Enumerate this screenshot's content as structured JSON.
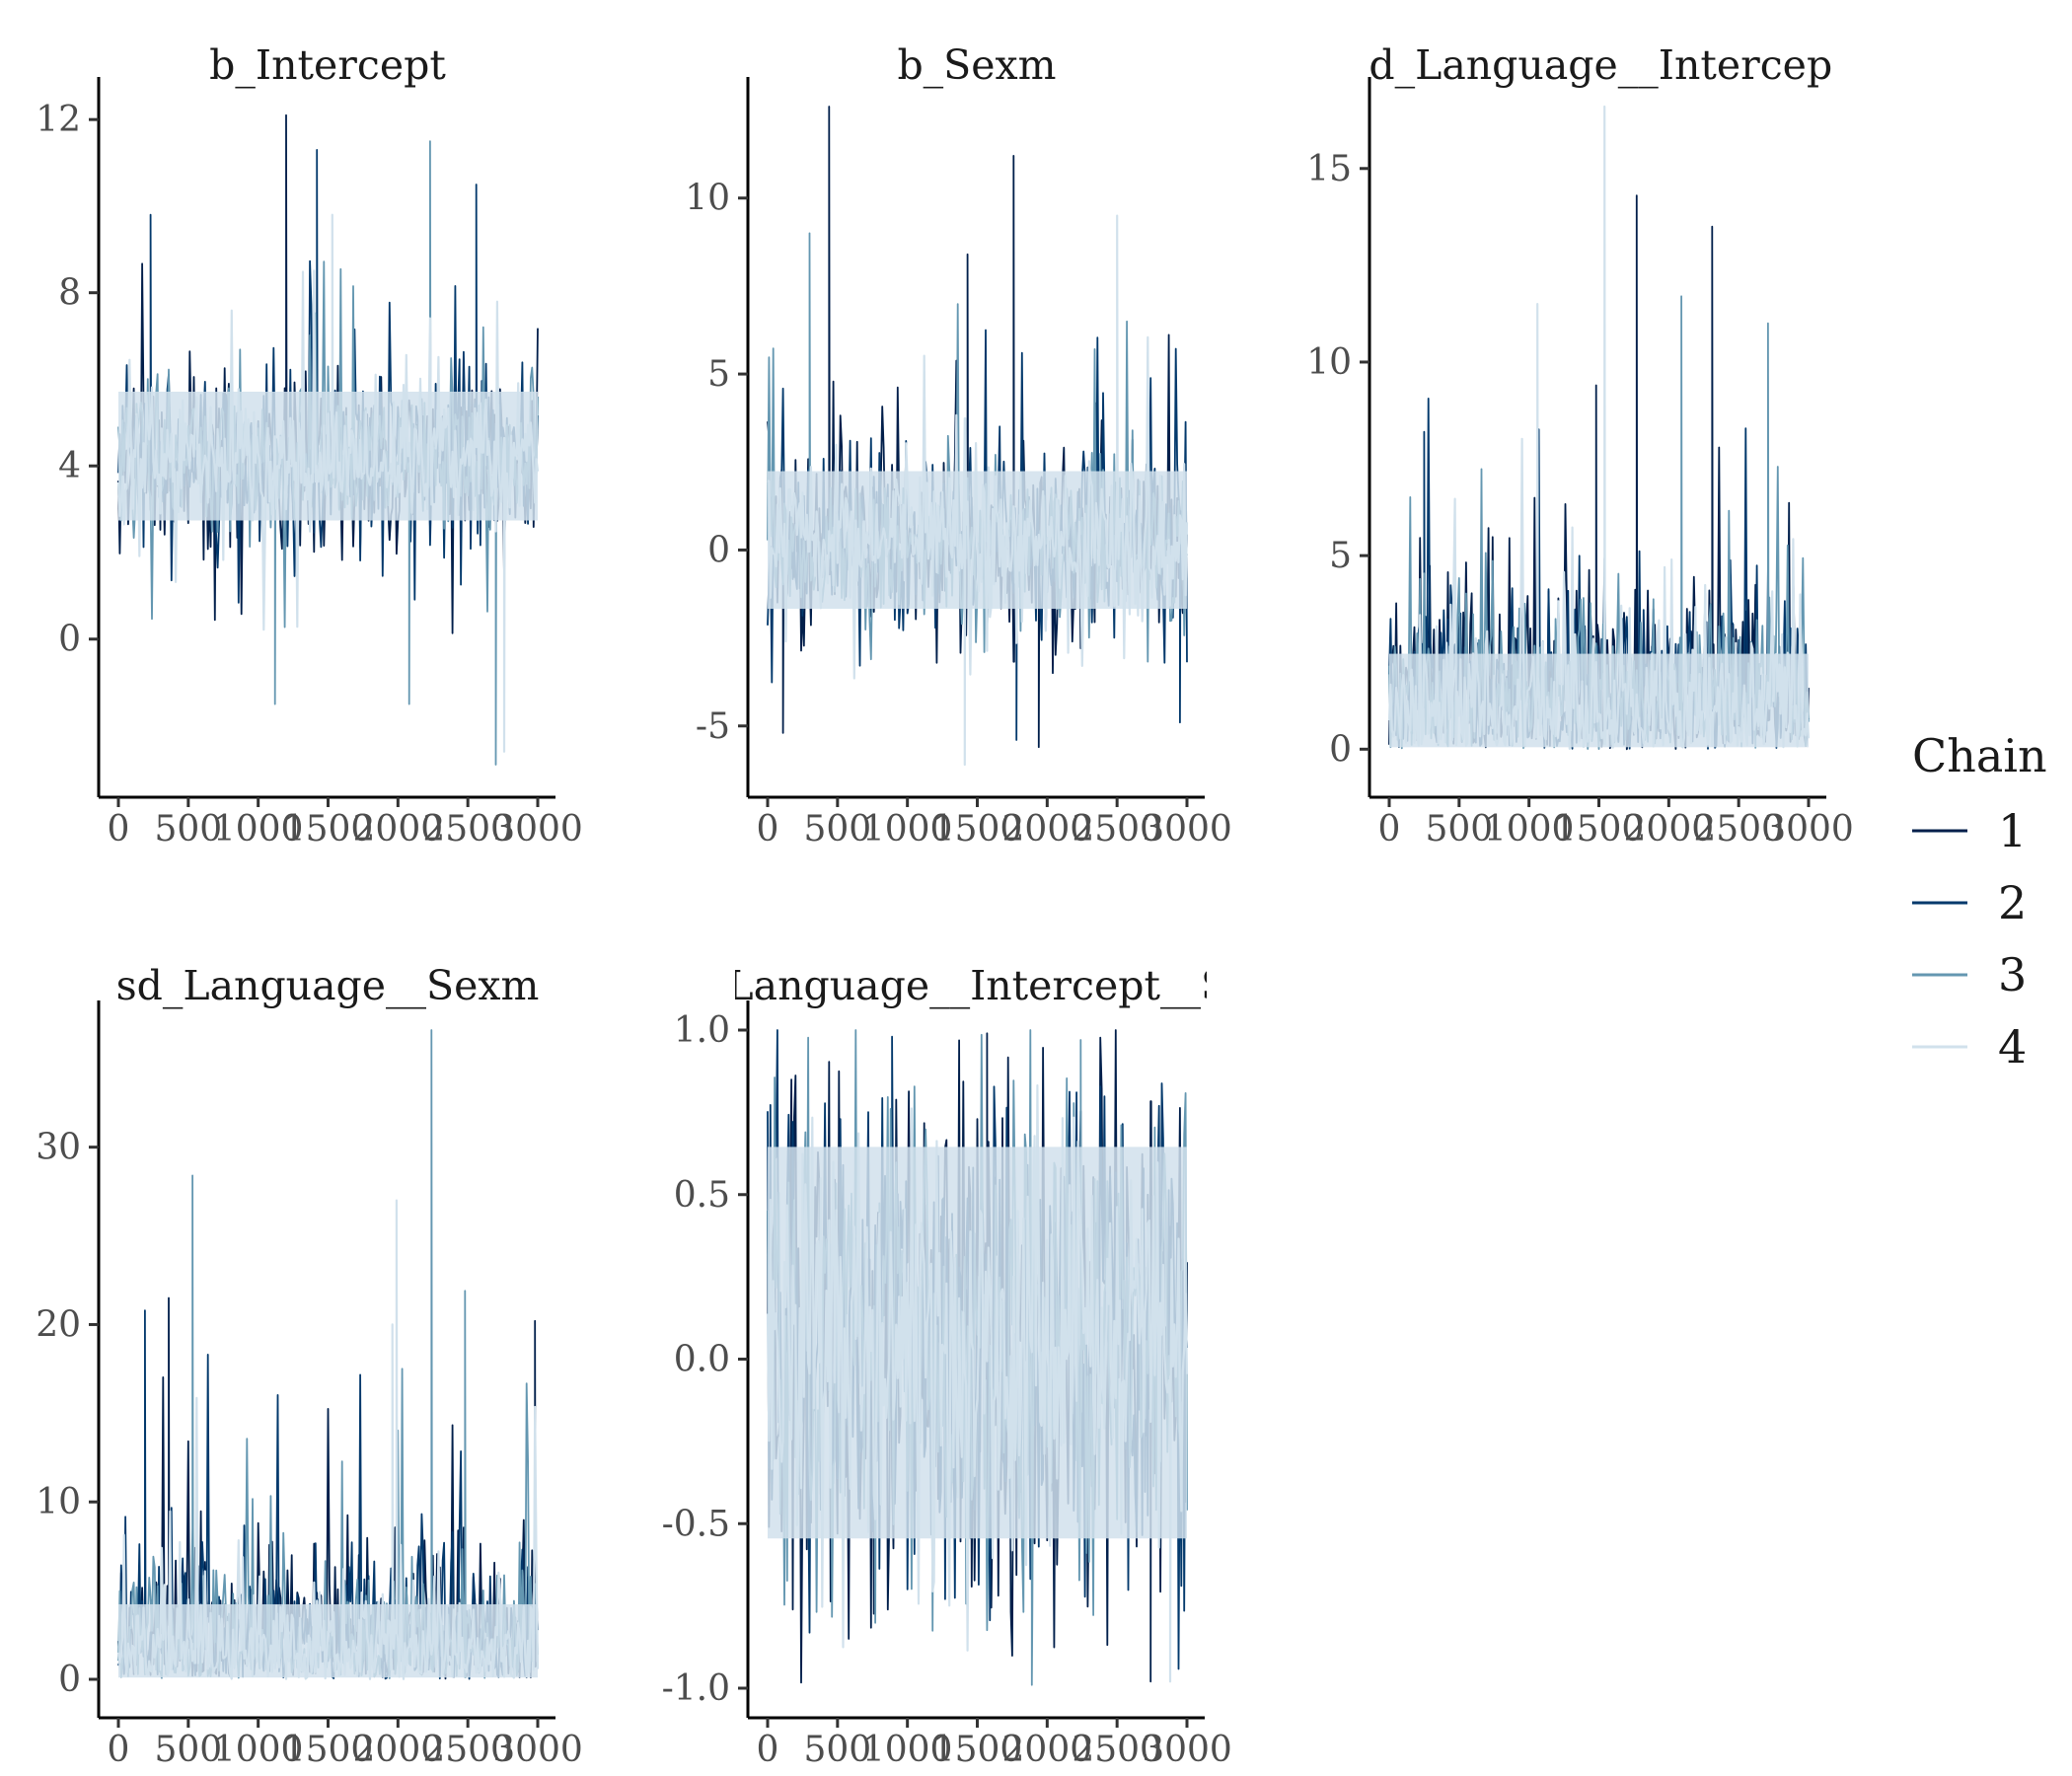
{
  "chart_data": {
    "type": "line",
    "legend": {
      "title": "Chain",
      "position": "right",
      "entries": [
        {
          "name": "1",
          "color": "#011f4b"
        },
        {
          "name": "2",
          "color": "#03396c"
        },
        {
          "name": "3",
          "color": "#6497b1"
        },
        {
          "name": "4",
          "color": "#d1e1ec"
        }
      ]
    },
    "grid": false,
    "panels": [
      {
        "title": "b_Intercept",
        "xlim": [
          0,
          3000
        ],
        "ylim": [
          -2.9,
          12.3
        ],
        "xticks": [
          0,
          500,
          1000,
          1500,
          2000,
          2500,
          3000
        ],
        "xtick_labels": [
          "0",
          "500",
          "1000",
          "1500",
          "2000",
          "2500",
          "3000"
        ],
        "yticks": [
          0,
          4,
          8,
          12
        ],
        "ytick_labels": [
          "0",
          "4",
          "8",
          "12"
        ],
        "series_summary": {
          "center": 4.1,
          "band_low": 2.5,
          "band_high": 6.0,
          "spike_high": 12.1,
          "spike_low": -2.9,
          "floor_bounded": false
        },
        "spikes": [
          {
            "chain": "1",
            "x": 1200,
            "y": 12.1
          },
          {
            "chain": "2",
            "x": 1420,
            "y": 11.3
          },
          {
            "chain": "3",
            "x": 2230,
            "y": 11.5
          },
          {
            "chain": "2",
            "x": 2560,
            "y": 10.5
          },
          {
            "chain": "2",
            "x": 230,
            "y": 9.8
          },
          {
            "chain": "4",
            "x": 1530,
            "y": 9.8
          },
          {
            "chain": "3",
            "x": 2700,
            "y": -2.9
          },
          {
            "chain": "4",
            "x": 2760,
            "y": -2.6
          },
          {
            "chain": "3",
            "x": 2080,
            "y": -1.5
          },
          {
            "chain": "3",
            "x": 1120,
            "y": -1.5
          }
        ]
      },
      {
        "title": "b_Sexm",
        "xlim": [
          0,
          3000
        ],
        "ylim": [
          -6.1,
          12.6
        ],
        "xticks": [
          0,
          500,
          1000,
          1500,
          2000,
          2500,
          3000
        ],
        "xtick_labels": [
          "0",
          "500",
          "1000",
          "1500",
          "2000",
          "2500",
          "3000"
        ],
        "yticks": [
          -5,
          0,
          5,
          10
        ],
        "ytick_labels": [
          "-5",
          "0",
          "5",
          "10"
        ],
        "series_summary": {
          "center": 0.2,
          "band_low": -2.0,
          "band_high": 2.6,
          "spike_high": 12.6,
          "spike_low": -6.1,
          "floor_bounded": false
        },
        "spikes": [
          {
            "chain": "1",
            "x": 440,
            "y": 12.6
          },
          {
            "chain": "1",
            "x": 1760,
            "y": 11.2
          },
          {
            "chain": "4",
            "x": 2500,
            "y": 9.5
          },
          {
            "chain": "3",
            "x": 300,
            "y": 9.0
          },
          {
            "chain": "1",
            "x": 1430,
            "y": 8.4
          },
          {
            "chain": "4",
            "x": 1410,
            "y": -6.1
          },
          {
            "chain": "1",
            "x": 110,
            "y": -5.2
          },
          {
            "chain": "2",
            "x": 1780,
            "y": -5.4
          },
          {
            "chain": "2",
            "x": 2950,
            "y": -4.9
          },
          {
            "chain": "1",
            "x": 1940,
            "y": -5.6
          }
        ]
      },
      {
        "title": "sd_Language__Intercept",
        "xlim": [
          0,
          3000
        ],
        "ylim": [
          -0.4,
          16.6
        ],
        "xticks": [
          0,
          500,
          1000,
          1500,
          2000,
          2500,
          3000
        ],
        "xtick_labels": [
          "0",
          "500",
          "1000",
          "1500",
          "2000",
          "2500",
          "3000"
        ],
        "yticks": [
          0,
          5,
          10,
          15
        ],
        "ytick_labels": [
          "0",
          "5",
          "10",
          "15"
        ],
        "series_summary": {
          "center": 1.5,
          "band_low": 0.05,
          "band_high": 3.5,
          "spike_high": 16.6,
          "spike_low": 0.0,
          "floor_bounded": true
        },
        "spikes": [
          {
            "chain": "4",
            "x": 1540,
            "y": 16.6
          },
          {
            "chain": "1",
            "x": 1770,
            "y": 14.3
          },
          {
            "chain": "1",
            "x": 2310,
            "y": 13.5
          },
          {
            "chain": "3",
            "x": 2090,
            "y": 11.7
          },
          {
            "chain": "4",
            "x": 1060,
            "y": 11.5
          },
          {
            "chain": "3",
            "x": 2710,
            "y": 11.0
          },
          {
            "chain": "1",
            "x": 1480,
            "y": 9.4
          },
          {
            "chain": "2",
            "x": 250,
            "y": 8.2
          }
        ]
      },
      {
        "title": "sd_Language__Sexm",
        "xlim": [
          0,
          3000
        ],
        "ylim": [
          -0.5,
          36.6
        ],
        "xticks": [
          0,
          500,
          1000,
          1500,
          2000,
          2500,
          3000
        ],
        "xtick_labels": [
          "0",
          "500",
          "1000",
          "1500",
          "2000",
          "2500",
          "3000"
        ],
        "yticks": [
          0,
          10,
          20,
          30
        ],
        "ytick_labels": [
          "0",
          "10",
          "20",
          "30"
        ],
        "series_summary": {
          "center": 2.5,
          "band_low": 0.1,
          "band_high": 6.0,
          "spike_high": 36.6,
          "spike_low": 0.0,
          "floor_bounded": true
        },
        "spikes": [
          {
            "chain": "3",
            "x": 2240,
            "y": 36.6
          },
          {
            "chain": "3",
            "x": 530,
            "y": 28.4
          },
          {
            "chain": "4",
            "x": 1990,
            "y": 27.0
          },
          {
            "chain": "3",
            "x": 2480,
            "y": 21.9
          },
          {
            "chain": "1",
            "x": 360,
            "y": 21.5
          },
          {
            "chain": "2",
            "x": 190,
            "y": 20.8
          },
          {
            "chain": "1",
            "x": 2980,
            "y": 20.2
          },
          {
            "chain": "4",
            "x": 1960,
            "y": 20.0
          }
        ]
      },
      {
        "title": "cor_Language__Intercept__Sexm",
        "xlim": [
          0,
          3000
        ],
        "ylim": [
          -1.0,
          1.0
        ],
        "xticks": [
          0,
          500,
          1000,
          1500,
          2000,
          2500,
          3000
        ],
        "xtick_labels": [
          "0",
          "500",
          "1000",
          "1500",
          "2000",
          "2500",
          "3000"
        ],
        "yticks": [
          -1.0,
          -0.5,
          0.0,
          0.5,
          1.0
        ],
        "ytick_labels": [
          "-1.0",
          "-0.5",
          "0.0",
          "0.5",
          "1.0"
        ],
        "series_summary": {
          "center": 0.05,
          "band_low": -0.65,
          "band_high": 0.75,
          "spike_high": 0.99,
          "spike_low": -0.99,
          "floor_bounded": false
        },
        "spikes": [
          {
            "chain": "1",
            "x": 1570,
            "y": 0.99
          },
          {
            "chain": "2",
            "x": 890,
            "y": 0.98
          },
          {
            "chain": "3",
            "x": 2240,
            "y": 0.97
          },
          {
            "chain": "1",
            "x": 2740,
            "y": -0.98
          },
          {
            "chain": "3",
            "x": 1890,
            "y": -0.99
          },
          {
            "chain": "4",
            "x": 2880,
            "y": -0.98
          }
        ]
      }
    ]
  }
}
